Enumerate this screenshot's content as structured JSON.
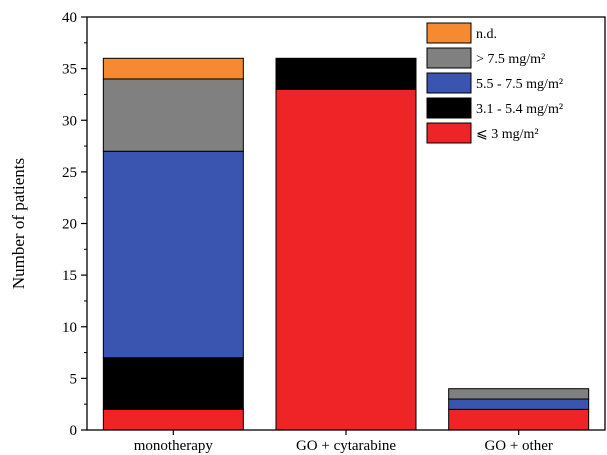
{
  "chart_data": {
    "type": "bar",
    "stacked": true,
    "categories": [
      "monotherapy",
      "GO + cytarabine",
      "GO + other"
    ],
    "ylabel": "Number of patients",
    "xlabel": "",
    "ylim": [
      0,
      40
    ],
    "yticks": [
      0,
      5,
      10,
      15,
      20,
      25,
      30,
      35,
      40
    ],
    "grid": false,
    "legend_position": "top-right",
    "series": [
      {
        "name": "⩽ 3 mg/m²",
        "color": "#ee2427",
        "values": [
          2,
          33,
          2
        ]
      },
      {
        "name": "3.1 - 5.4 mg/m²",
        "color": "#000000",
        "values": [
          5,
          3,
          0
        ]
      },
      {
        "name": "5.5 - 7.5 mg/m²",
        "color": "#3a55b0",
        "values": [
          20,
          0,
          1
        ]
      },
      {
        "name": "> 7.5 mg/m²",
        "color": "#808080",
        "values": [
          7,
          0,
          1
        ]
      },
      {
        "name": "n.d.",
        "color": "#f58a31",
        "values": [
          2,
          0,
          0
        ]
      }
    ]
  }
}
